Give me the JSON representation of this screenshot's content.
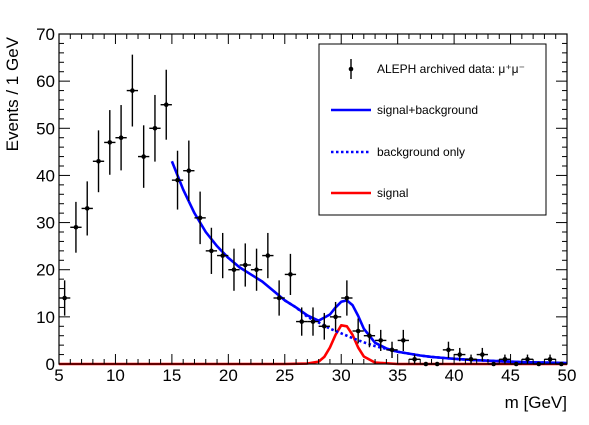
{
  "chart_data": {
    "type": "scatter",
    "title": "",
    "xlabel": "m [GeV]",
    "ylabel": "Events / 1 GeV",
    "xlim": [
      5,
      50
    ],
    "ylim": [
      0,
      70
    ],
    "xticks": [
      "5",
      "10",
      "15",
      "20",
      "25",
      "30",
      "35",
      "40",
      "45",
      "50"
    ],
    "yticks": [
      "0",
      "10",
      "20",
      "30",
      "40",
      "50",
      "60",
      "70"
    ],
    "legend_position": "top-right",
    "colors": {
      "data": "#000000",
      "signal_plus_background": "#0000ff",
      "background_only": "#0000ff",
      "signal": "#ff0000"
    },
    "data_points": {
      "name": "ALEPH archived data: μ⁺μ⁻",
      "x": [
        5.5,
        6.5,
        7.5,
        8.5,
        9.5,
        10.5,
        11.5,
        12.5,
        13.5,
        14.5,
        15.5,
        16.5,
        17.5,
        18.5,
        19.5,
        20.5,
        21.5,
        22.5,
        23.5,
        24.5,
        25.5,
        26.5,
        27.5,
        28.5,
        29.5,
        30.5,
        31.5,
        32.5,
        33.5,
        34.5,
        35.5,
        36.5,
        37.5,
        38.5,
        39.5,
        40.5,
        41.5,
        42.5,
        43.5,
        44.5,
        45.5,
        46.5,
        47.5,
        48.5,
        49.5
      ],
      "y": [
        14,
        29,
        33,
        43,
        47,
        48,
        58,
        44,
        50,
        55,
        39,
        41,
        31,
        24,
        23,
        20,
        21,
        20,
        23,
        14,
        19,
        9,
        9,
        8,
        10,
        14,
        7,
        6,
        5,
        3,
        5,
        1,
        0,
        0,
        3,
        2,
        1,
        2,
        0,
        1,
        0,
        1,
        0,
        1,
        0
      ],
      "y_err": [
        3.74,
        5.39,
        5.74,
        6.56,
        6.86,
        6.93,
        7.62,
        6.63,
        7.07,
        7.42,
        6.24,
        6.4,
        5.57,
        4.9,
        4.8,
        4.47,
        4.58,
        4.47,
        4.8,
        3.74,
        4.36,
        3.0,
        3.0,
        2.83,
        3.16,
        3.74,
        2.65,
        2.45,
        2.24,
        1.73,
        2.24,
        1.0,
        0,
        0,
        1.73,
        1.41,
        1.0,
        1.41,
        0,
        1.0,
        0,
        1.0,
        0,
        1.0,
        0
      ]
    },
    "series": [
      {
        "name": "signal+background",
        "style": "solid",
        "x": [
          15,
          16,
          17,
          18,
          19,
          20,
          21,
          22,
          23,
          24,
          25,
          26,
          27,
          28,
          29,
          29.5,
          30,
          30.5,
          31,
          31.5,
          32,
          33,
          34,
          35,
          36,
          37,
          38,
          39,
          40,
          42,
          44,
          46,
          48,
          50
        ],
        "y": [
          43,
          37,
          32,
          28,
          25,
          22.5,
          20.5,
          19,
          17.5,
          15.5,
          13.5,
          12,
          10.3,
          9.2,
          10.5,
          12,
          13.2,
          13.5,
          12.5,
          10.2,
          7.5,
          4.5,
          3.3,
          2.6,
          2.2,
          1.8,
          1.5,
          1.3,
          1.1,
          0.8,
          0.6,
          0.4,
          0.3,
          0.2
        ]
      },
      {
        "name": "background only",
        "style": "dotted",
        "x": [
          25,
          26,
          27,
          28,
          29,
          30,
          31,
          32,
          33,
          34,
          35,
          36,
          37,
          38,
          39,
          40,
          42,
          44,
          46,
          48,
          50
        ],
        "y": [
          13.5,
          12,
          10,
          8.8,
          7.5,
          6.5,
          5.5,
          4.6,
          3.8,
          3.2,
          2.6,
          2.2,
          1.8,
          1.5,
          1.3,
          1.1,
          0.8,
          0.6,
          0.4,
          0.3,
          0.2
        ]
      },
      {
        "name": "signal",
        "style": "solid",
        "x": [
          5,
          20,
          25,
          27,
          28,
          28.5,
          29,
          29.5,
          30,
          30.5,
          31,
          31.5,
          32,
          33,
          35,
          50
        ],
        "y": [
          0,
          0,
          0,
          0.1,
          0.5,
          1.5,
          3.5,
          6.2,
          8.2,
          8.0,
          6.2,
          3.5,
          1.6,
          0.3,
          0,
          0
        ]
      }
    ]
  }
}
